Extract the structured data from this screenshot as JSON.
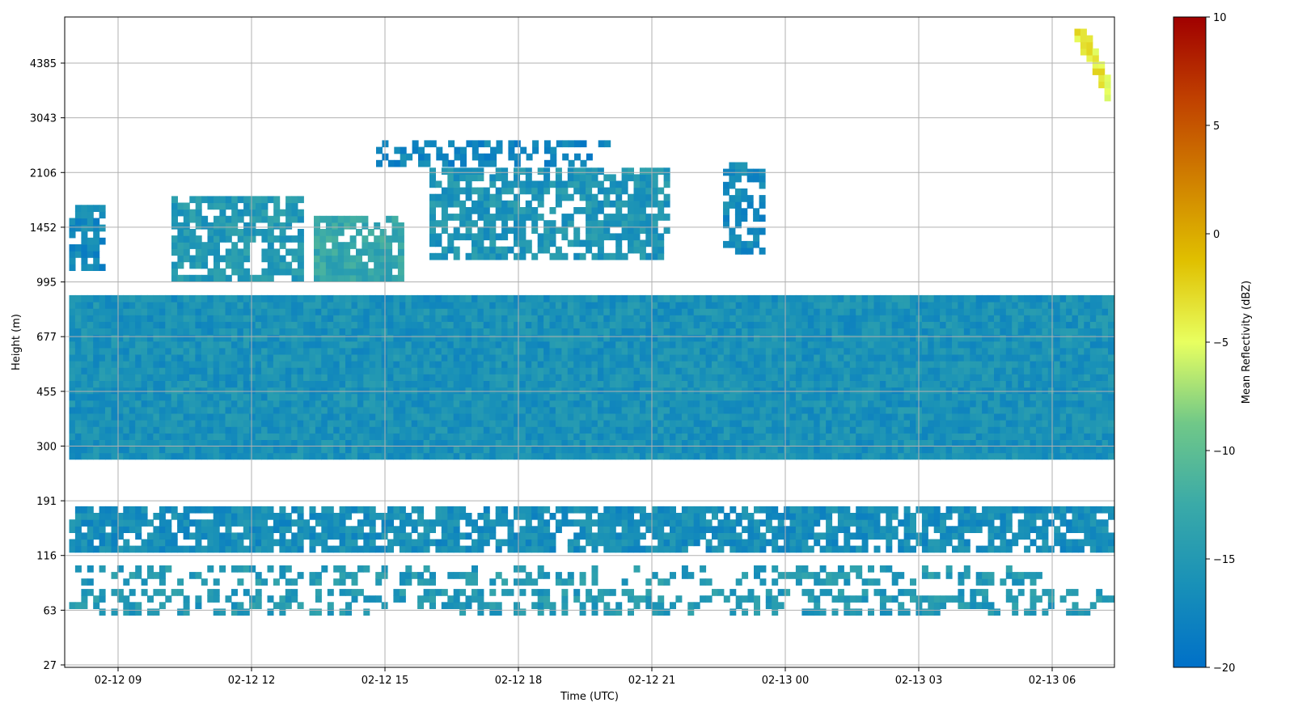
{
  "chart_data": {
    "type": "heatmap",
    "title": "",
    "xlabel": "Time (UTC)",
    "ylabel": "Height (m)",
    "grid": true,
    "x_range_hours": [
      7.8,
      31.4
    ],
    "x_ticks": [
      {
        "label": "02-12 09",
        "hour": 9
      },
      {
        "label": "02-12 12",
        "hour": 12
      },
      {
        "label": "02-12 15",
        "hour": 15
      },
      {
        "label": "02-12 18",
        "hour": 18
      },
      {
        "label": "02-12 21",
        "hour": 21
      },
      {
        "label": "02-13 00",
        "hour": 24
      },
      {
        "label": "02-13 03",
        "hour": 27
      },
      {
        "label": "02-13 06",
        "hour": 30
      }
    ],
    "y_ticks": [
      "27",
      "63",
      "116",
      "191",
      "300",
      "455",
      "677",
      "995",
      "1452",
      "2106",
      "3043",
      "4385"
    ],
    "colorbar": {
      "label": "Mean Reflectivity (dBZ)",
      "range": [
        -20,
        10
      ],
      "ticks": [
        "10",
        "5",
        "0",
        "−5",
        "−10",
        "−15",
        "−20"
      ],
      "colors": [
        "#0070c8",
        "#1890b8",
        "#3aaaa8",
        "#70c888",
        "#e8ff60",
        "#e0c000",
        "#d08000",
        "#c04000",
        "#a00000"
      ]
    },
    "echo_regions": [
      {
        "name": "surface-clutter",
        "t": [
          7.9,
          31.3
        ],
        "h_bins": [
          0.9,
          1.35
        ],
        "dbz": -15,
        "density": 0.45
      },
      {
        "name": "low-echo",
        "t": [
          7.9,
          29.9
        ],
        "h_bins": [
          1.45,
          1.8
        ],
        "dbz": -15,
        "density": 0.35
      },
      {
        "name": "band-116-191",
        "t": [
          7.9,
          31.3
        ],
        "h_bins": [
          2.05,
          2.8
        ],
        "dbz": -16.5,
        "density": 0.8
      },
      {
        "name": "band-300-850",
        "t": [
          7.9,
          31.3
        ],
        "h_bins": [
          3.75,
          6.7
        ],
        "dbz": -16,
        "density": 1.0
      },
      {
        "name": "cloud-1",
        "t": [
          7.9,
          8.6
        ],
        "h_bins": [
          7.2,
          8.3
        ],
        "dbz": -17,
        "density": 0.8
      },
      {
        "name": "cloud-2",
        "t": [
          10.2,
          13.1
        ],
        "h_bins": [
          7.0,
          8.5
        ],
        "dbz": -15,
        "density": 0.75
      },
      {
        "name": "cloud-3",
        "t": [
          13.4,
          15.3
        ],
        "h_bins": [
          7.0,
          8.2
        ],
        "dbz": -13,
        "density": 0.85
      },
      {
        "name": "cloud-4",
        "t": [
          16.0,
          21.4
        ],
        "h_bins": [
          7.4,
          9.0
        ],
        "dbz": -15.5,
        "density": 0.7
      },
      {
        "name": "cloud-5",
        "t": [
          22.6,
          23.5
        ],
        "h_bins": [
          7.5,
          9.1
        ],
        "dbz": -17,
        "density": 0.6
      },
      {
        "name": "upper-cloud",
        "t": [
          14.8,
          20.0
        ],
        "h_bins": [
          9.1,
          9.5
        ],
        "dbz": -17.5,
        "density": 0.5
      },
      {
        "name": "fall-streak-top",
        "t": [
          30.5,
          31.3
        ],
        "h_bins": [
          10.3,
          11.6
        ],
        "dbz": -4,
        "density": 1.0
      }
    ]
  }
}
